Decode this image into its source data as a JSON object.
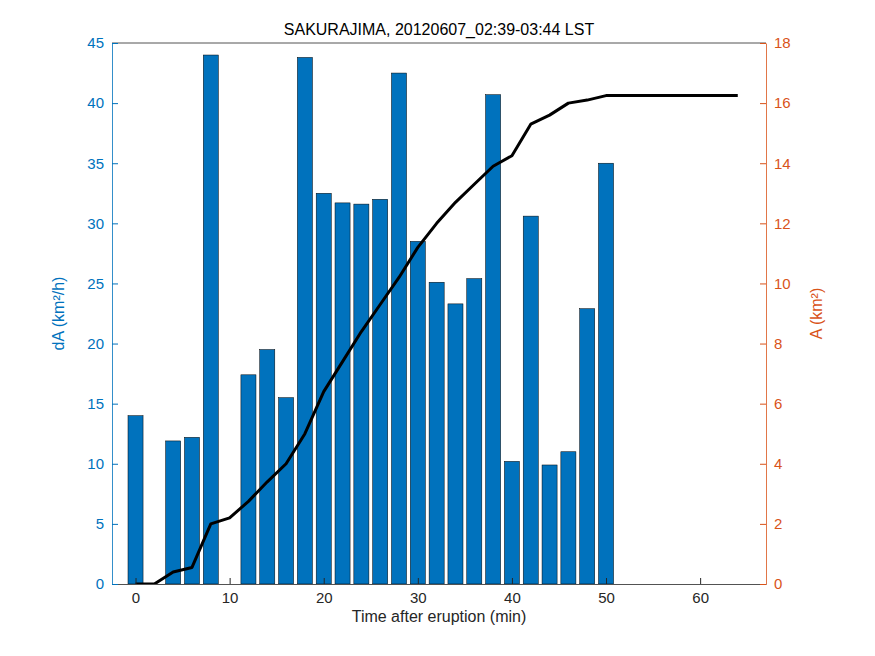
{
  "chart_data": {
    "type": "bar",
    "title": "SAKURAJIMA, 20120607_02:39-03:44 LST",
    "x_label": "Time after eruption (min)",
    "y_label": "dA (km²/h)",
    "y2_label": "A (km²)",
    "xlim": [
      -2.5,
      67
    ],
    "xticks": [
      0,
      10,
      20,
      30,
      40,
      50,
      60
    ],
    "ylim": [
      0,
      45
    ],
    "yticks": [
      0,
      5,
      10,
      15,
      20,
      25,
      30,
      35,
      40,
      45
    ],
    "y2lim": [
      0,
      18
    ],
    "y2ticks": [
      0,
      2,
      4,
      6,
      8,
      10,
      12,
      14,
      16,
      18
    ],
    "grid": false,
    "series": [
      {
        "type": "bar",
        "color": "#0072bd",
        "x": [
          0,
          2,
          4,
          6,
          8,
          10,
          12,
          14,
          16,
          18,
          20,
          22,
          24,
          26,
          28,
          30,
          32,
          34,
          36,
          38,
          40,
          42,
          44,
          46,
          48,
          50
        ],
        "values": [
          14,
          0,
          11.9,
          12.2,
          44,
          0,
          17.4,
          19.5,
          15.5,
          43.8,
          32.5,
          31.7,
          31.6,
          32.0,
          42.5,
          28.5,
          25.1,
          23.3,
          25.4,
          40.7,
          10.2,
          30.6,
          9.9,
          11.0,
          22.9,
          35.0
        ]
      },
      {
        "type": "line",
        "color": "#000000",
        "axis": "y2",
        "x": [
          0,
          2,
          4,
          6,
          8,
          10,
          12,
          14,
          16,
          18,
          20,
          22,
          24,
          26,
          28,
          30,
          32,
          34,
          36,
          38,
          40,
          42,
          44,
          46,
          48,
          50,
          52,
          54,
          56,
          58,
          60,
          62,
          64
        ],
        "values": [
          0,
          0,
          0.4,
          0.55,
          2.0,
          2.2,
          2.75,
          3.4,
          4.0,
          5.0,
          6.4,
          7.4,
          8.4,
          9.3,
          10.2,
          11.2,
          12.0,
          12.7,
          13.3,
          13.9,
          14.25,
          15.3,
          15.6,
          16.0,
          16.1,
          16.25,
          16.25,
          16.25,
          16.25,
          16.25,
          16.25,
          16.25,
          16.25
        ]
      }
    ]
  }
}
